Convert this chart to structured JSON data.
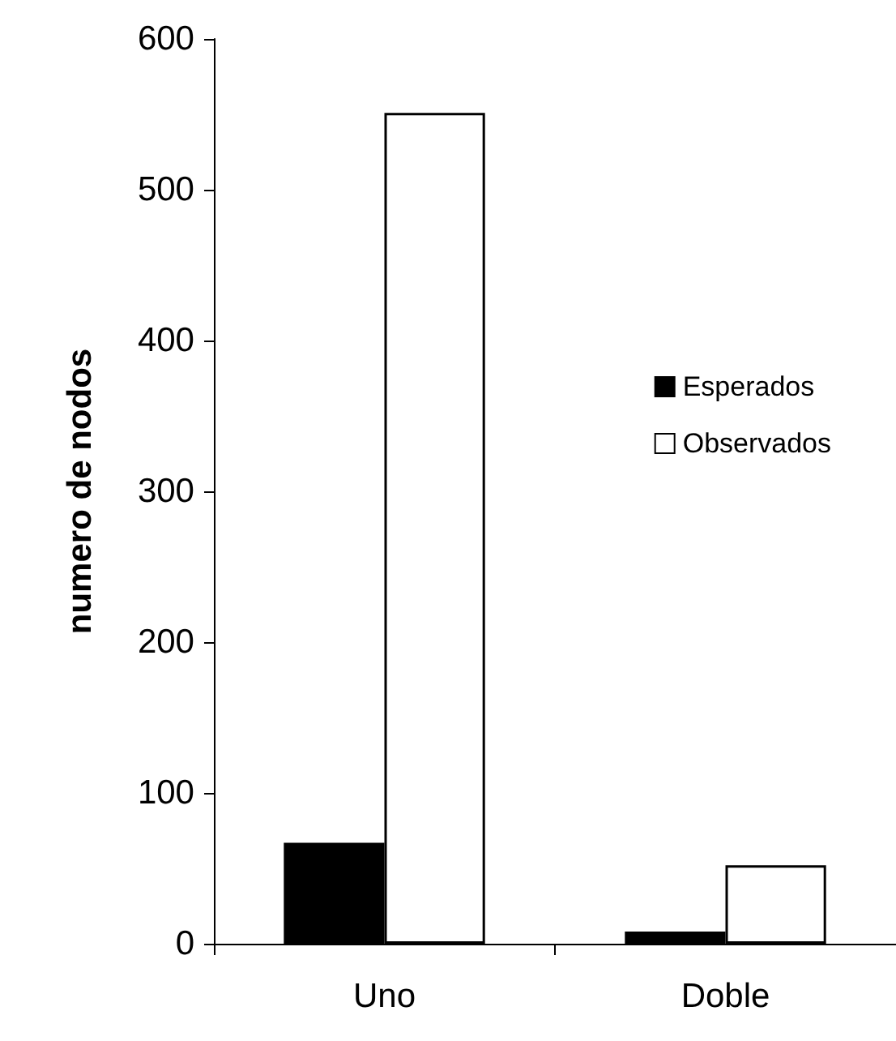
{
  "chart_data": {
    "type": "bar",
    "ylabel": "numero de nodos",
    "categories": [
      "Uno",
      "Doble"
    ],
    "series": [
      {
        "name": "Esperados",
        "color": "#000000",
        "values": [
          67,
          8
        ]
      },
      {
        "name": "Observados",
        "color": "#ffffff",
        "values": [
          551,
          52
        ]
      }
    ],
    "ylim": [
      0,
      600
    ],
    "yticks": [
      0,
      100,
      200,
      300,
      400,
      500,
      600
    ],
    "grid": false,
    "legend": "right"
  }
}
